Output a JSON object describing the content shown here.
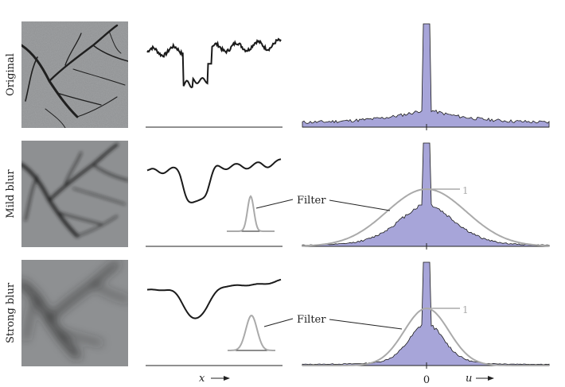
{
  "rows": [
    {
      "label": "Original",
      "blur": 0,
      "filter": false
    },
    {
      "label": "Mild blur",
      "blur": 1,
      "filter": true,
      "filter_label": "Filter",
      "one_label": "1"
    },
    {
      "label": "Strong blur",
      "blur": 2,
      "filter": true,
      "filter_label": "Filter",
      "one_label": "1"
    }
  ],
  "axes": {
    "x_label": "x",
    "u_label": "u",
    "u_tick": "0"
  },
  "colors": {
    "spectrum_fill": "#a7a5d9",
    "curve": "#1a1a1a",
    "filter": "#aaaaaa",
    "photo_bg": "#8e9092"
  }
}
